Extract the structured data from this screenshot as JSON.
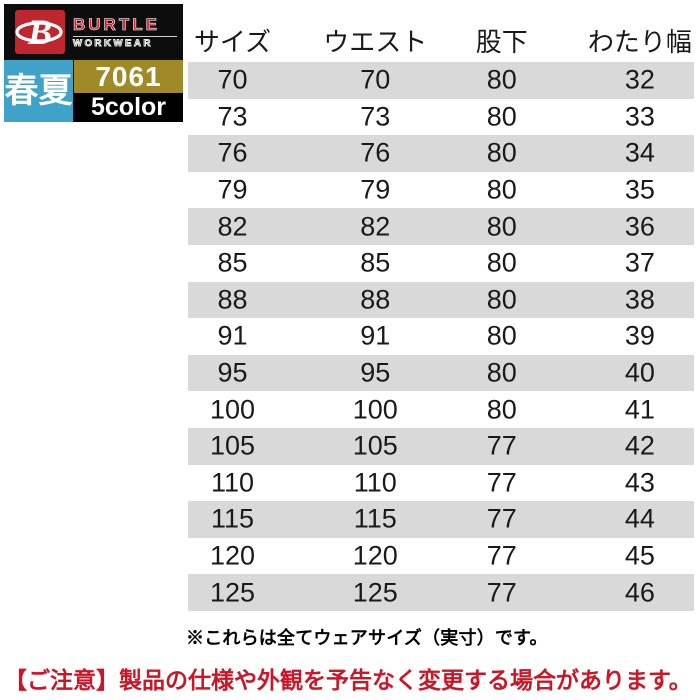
{
  "brand": {
    "name": "BURTLE",
    "sub": "WORKWEAR",
    "logo_letter": "B",
    "season": "春夏",
    "model": "7061",
    "colors_label": "5color"
  },
  "colors": {
    "logo_red": "#c0262e",
    "wordmark_red": "#d0202a",
    "season_blue": "#3fa2c8",
    "model_gold": "#a08a28",
    "badge_black": "#0d0d0d",
    "row_gray": "#d9d9d9",
    "caution_red": "#cc1626"
  },
  "chart_data": {
    "type": "table",
    "columns": [
      "サイズ",
      "ウエスト",
      "股下",
      "わたり幅"
    ],
    "rows": [
      [
        70,
        70,
        80,
        32
      ],
      [
        73,
        73,
        80,
        33
      ],
      [
        76,
        76,
        80,
        34
      ],
      [
        79,
        79,
        80,
        35
      ],
      [
        82,
        82,
        80,
        36
      ],
      [
        85,
        85,
        80,
        37
      ],
      [
        88,
        88,
        80,
        38
      ],
      [
        91,
        91,
        80,
        39
      ],
      [
        95,
        95,
        80,
        40
      ],
      [
        100,
        100,
        80,
        41
      ],
      [
        105,
        105,
        77,
        42
      ],
      [
        110,
        110,
        77,
        43
      ],
      [
        115,
        115,
        77,
        44
      ],
      [
        120,
        120,
        77,
        45
      ],
      [
        125,
        125,
        77,
        46
      ]
    ],
    "zebra": "even rows gray starting with first row",
    "legend_position": "none",
    "grid": false
  },
  "notes": {
    "size_note": "※これらは全てウェアサイズ（実寸）です。",
    "caution": "【ご注意】製品の仕様や外観を予告なく変更する場合があります。"
  }
}
